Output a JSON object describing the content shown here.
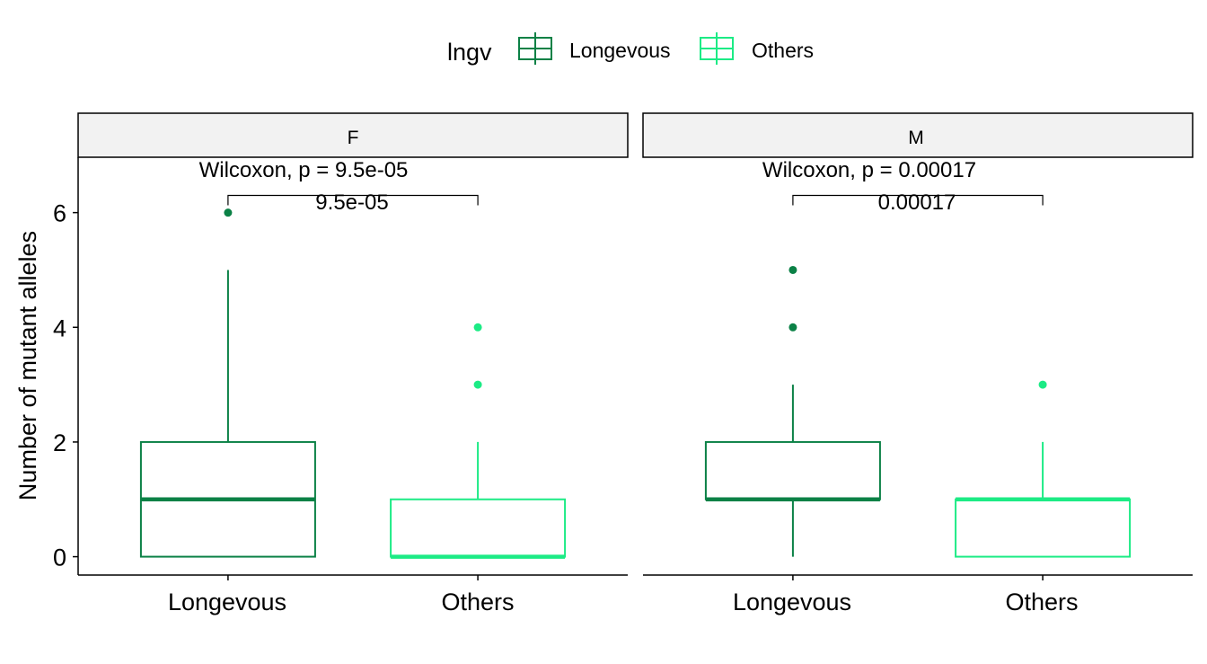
{
  "legend": {
    "title": "lngv",
    "items": [
      {
        "label": "Longevous",
        "color": "#0B8146"
      },
      {
        "label": "Others",
        "color": "#1CEB85"
      }
    ]
  },
  "chart_data": {
    "type": "boxplot",
    "ylabel": "Number of mutant alleles",
    "xlabel": "",
    "ylim": [
      -0.32,
      6.95
    ],
    "yticks": [
      0,
      2,
      4,
      6
    ],
    "categories": [
      "Longevous",
      "Others"
    ],
    "grid": false,
    "legend_position": "top",
    "panels": [
      {
        "facet": "F",
        "test_label": "Wilcoxon, p = 9.5e-05",
        "bracket_label": "9.5e-05",
        "bracket_y": 6.3,
        "boxes": [
          {
            "group": "Longevous",
            "min": 0,
            "q1": 0,
            "median": 1,
            "q3": 2,
            "max": 5,
            "outliers": [
              6
            ]
          },
          {
            "group": "Others",
            "min": 0,
            "q1": 0,
            "median": 0,
            "q3": 1,
            "max": 2,
            "outliers": [
              3,
              4
            ]
          }
        ]
      },
      {
        "facet": "M",
        "test_label": "Wilcoxon, p = 0.00017",
        "bracket_label": "0.00017",
        "bracket_y": 6.3,
        "boxes": [
          {
            "group": "Longevous",
            "min": 0,
            "q1": 1,
            "median": 1,
            "q3": 2,
            "max": 3,
            "outliers": [
              4,
              5
            ]
          },
          {
            "group": "Others",
            "min": 0,
            "q1": 0,
            "median": 1,
            "q3": 1,
            "max": 2,
            "outliers": [
              3
            ]
          }
        ]
      }
    ]
  }
}
